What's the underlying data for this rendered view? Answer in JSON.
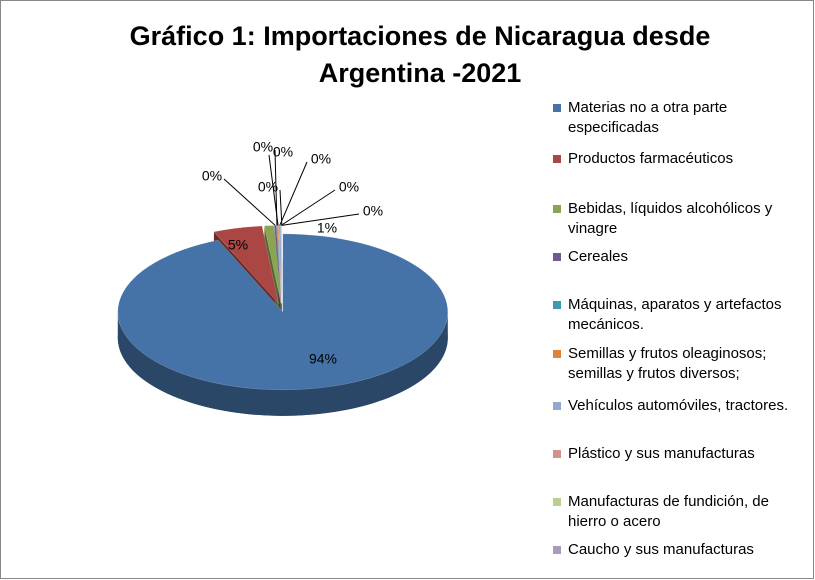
{
  "chart_data": {
    "type": "pie3d",
    "title": "Gráfico 1: Importaciones de Nicaragua desde Argentina -2021",
    "categories": [
      "Materias no a otra parte especificadas",
      "Productos farmacéuticos",
      "Bebidas, líquidos alcohólicos y vinagre",
      "Cereales",
      "Máquinas, aparatos y artefactos mecánicos.",
      "Semillas y frutos oleaginosos; semillas y frutos diversos;",
      "Vehículos automóviles, tractores.",
      "Plástico y sus manufacturas",
      "Manufacturas de fundición, de hierro o acero",
      "Caucho y sus manufacturas"
    ],
    "values": [
      93.6,
      4.8,
      0.9,
      0.2,
      0.1,
      0.1,
      0.2,
      0.05,
      0.03,
      0.02
    ],
    "value_labels": [
      "94%",
      "5%",
      "1%",
      "0%",
      "0%",
      "0%",
      "0%",
      "0%",
      "0%",
      "0%"
    ],
    "colors": [
      "#4572a7",
      "#aa4643",
      "#89a54e",
      "#71588f",
      "#4198af",
      "#db843d",
      "#93a9cf",
      "#d19392",
      "#b9cd96",
      "#a99bbd"
    ],
    "legend": "right"
  }
}
